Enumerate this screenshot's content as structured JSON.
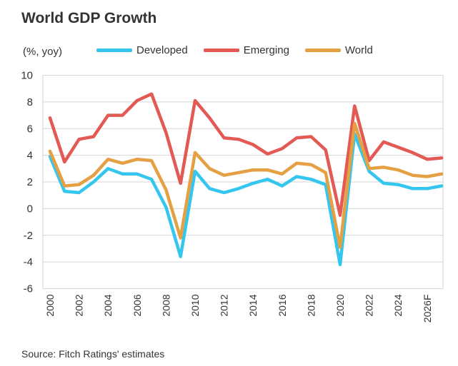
{
  "chart_data": {
    "type": "line",
    "title": "World GDP Growth",
    "ylabel": "(%, yoy)",
    "source": "Source: Fitch Ratings' estimates",
    "ylim": [
      -6,
      10
    ],
    "yticks": [
      -6,
      -4,
      -2,
      0,
      2,
      4,
      6,
      8,
      10
    ],
    "grid": true,
    "legend": "top",
    "x": [
      2000,
      2001,
      2002,
      2003,
      2004,
      2005,
      2006,
      2007,
      2008,
      2009,
      2010,
      2011,
      2012,
      2013,
      2014,
      2015,
      2016,
      2017,
      2018,
      2019,
      2020,
      2021,
      2022,
      2023,
      2024,
      2025,
      2026,
      2027
    ],
    "xtick_labels": [
      "2000",
      "2002",
      "2004",
      "2006",
      "2008",
      "2010",
      "2012",
      "2014",
      "2016",
      "2018",
      "2020",
      "2022",
      "2024",
      "2026F"
    ],
    "series": [
      {
        "name": "Developed",
        "color": "#35c6f0",
        "values": [
          3.9,
          1.3,
          1.2,
          2.0,
          3.0,
          2.6,
          2.6,
          2.2,
          0.1,
          -3.6,
          2.8,
          1.5,
          1.2,
          1.5,
          1.9,
          2.2,
          1.7,
          2.4,
          2.2,
          1.8,
          -4.2,
          5.6,
          2.8,
          1.9,
          1.8,
          1.5,
          1.5,
          1.7
        ]
      },
      {
        "name": "Emerging",
        "color": "#e35a55",
        "values": [
          6.8,
          3.5,
          5.2,
          5.4,
          7.0,
          7.0,
          8.1,
          8.6,
          5.7,
          1.9,
          8.1,
          6.8,
          5.3,
          5.2,
          4.8,
          4.1,
          4.5,
          5.3,
          5.4,
          4.4,
          -0.5,
          7.7,
          3.6,
          5.0,
          4.6,
          4.2,
          3.7,
          3.8
        ]
      },
      {
        "name": "World",
        "color": "#e4a042",
        "values": [
          4.3,
          1.7,
          1.8,
          2.5,
          3.7,
          3.4,
          3.7,
          3.6,
          1.4,
          -2.2,
          4.2,
          3.0,
          2.5,
          2.7,
          2.9,
          2.9,
          2.6,
          3.4,
          3.3,
          2.7,
          -2.9,
          6.4,
          3.0,
          3.1,
          2.9,
          2.5,
          2.4,
          2.6
        ]
      }
    ]
  }
}
